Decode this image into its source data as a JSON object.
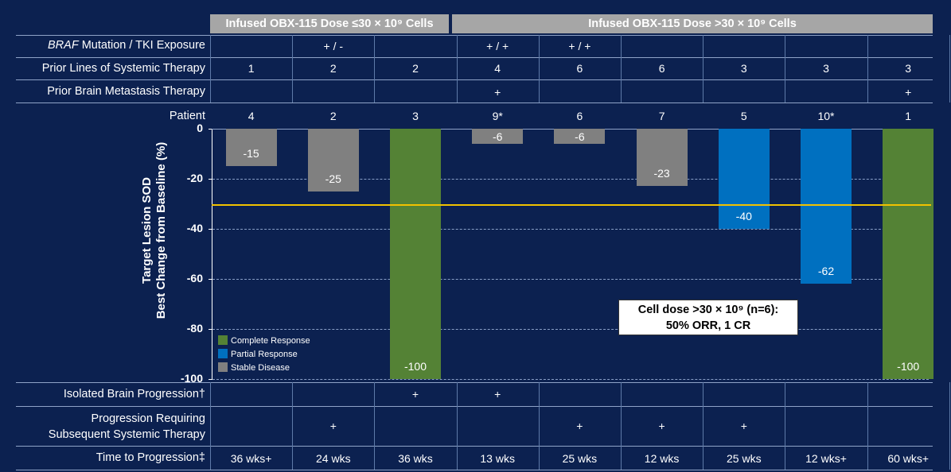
{
  "headers": {
    "low_dose": "Infused OBX-115 Dose ≤30 × 10⁹ Cells",
    "high_dose": "Infused OBX-115 Dose >30 × 10⁹ Cells"
  },
  "rows": {
    "braf": {
      "label_italic": "BRAF",
      "label_rest": " Mutation / TKI Exposure",
      "values": [
        "",
        "+ / -",
        "",
        "+ / +",
        "+ / +",
        "",
        "",
        "",
        ""
      ]
    },
    "prior_lines": {
      "label": "Prior Lines of Systemic Therapy",
      "values": [
        "1",
        "2",
        "2",
        "4",
        "6",
        "6",
        "3",
        "3",
        "3"
      ]
    },
    "prior_brain": {
      "label": "Prior Brain Metastasis Therapy",
      "values": [
        "",
        "",
        "",
        "+",
        "",
        "",
        "",
        "",
        "+"
      ]
    },
    "patient": {
      "label": "Patient",
      "values": [
        "4",
        "2",
        "3",
        "9*",
        "6",
        "7",
        "5",
        "10*",
        "1"
      ]
    },
    "isolated_brain": {
      "label": "Isolated Brain Progression†",
      "values": [
        "",
        "",
        "+",
        "+",
        "",
        "",
        "",
        "",
        ""
      ]
    },
    "progression_systemic": {
      "label_line1": "Progression Requiring",
      "label_line2": "Subsequent  Systemic Therapy",
      "values": [
        "",
        "+",
        "",
        "",
        "+",
        "+",
        "+",
        "",
        ""
      ]
    },
    "time_to_progression": {
      "label": "Time to Progression‡",
      "values": [
        "36 wks+",
        "24 wks",
        "36 wks",
        "13 wks",
        "25 wks",
        "12 wks",
        "25 wks",
        "12 wks+",
        "60 wks+"
      ]
    }
  },
  "chart_data": {
    "type": "bar",
    "categories": [
      "4",
      "2",
      "3",
      "9*",
      "6",
      "7",
      "5",
      "10*",
      "1"
    ],
    "values": [
      -15,
      -25,
      -100,
      -6,
      -6,
      -23,
      -40,
      -62,
      -100
    ],
    "response": [
      "Stable Disease",
      "Stable Disease",
      "Complete Response",
      "Stable Disease",
      "Stable Disease",
      "Stable Disease",
      "Partial Response",
      "Partial Response",
      "Complete Response"
    ],
    "ylabel_line1": "Target Lesion SOD",
    "ylabel_line2": "Best Change from Baseline (%)",
    "ylim": [
      -100,
      0
    ],
    "yticks": [
      "0",
      "-20",
      "-40",
      "-60",
      "-80",
      "-100"
    ],
    "threshold": -30,
    "grid": true,
    "legend": [
      {
        "name": "Complete Response",
        "color": "#548235"
      },
      {
        "name": "Partial Response",
        "color": "#0070c0"
      },
      {
        "name": "Stable Disease",
        "color": "#808080"
      }
    ],
    "legend_position": "bottom-left",
    "threshold_color": "#f2c200"
  },
  "callout": {
    "line1": "Cell dose >30 × 10⁹ (n=6):",
    "line2": "50% ORR, 1 CR"
  }
}
